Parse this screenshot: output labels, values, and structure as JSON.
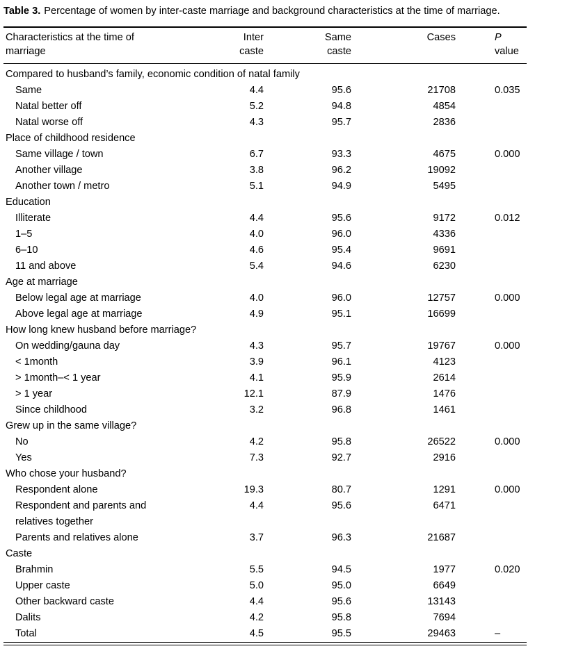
{
  "table": {
    "title_label": "Table 3.",
    "title_text": "Percentage of women by inter-caste marriage and background characteristics at the time of marriage.",
    "columns": {
      "characteristic": "Characteristics at the time of\nmarriage",
      "inter": "Inter\ncaste",
      "same": "Same\ncaste",
      "cases": "Cases",
      "p_italic": "P",
      "p_rest": "value"
    },
    "sections": [
      {
        "header": "Compared to husband’s family, economic condition of natal family",
        "rows": [
          {
            "label": "Same",
            "inter": "4.4",
            "same": "95.6",
            "cases": "21708",
            "p": "0.035"
          },
          {
            "label": "Natal better off",
            "inter": "5.2",
            "same": "94.8",
            "cases": "4854",
            "p": ""
          },
          {
            "label": "Natal worse off",
            "inter": "4.3",
            "same": "95.7",
            "cases": "2836",
            "p": ""
          }
        ]
      },
      {
        "header": "Place of childhood residence",
        "rows": [
          {
            "label": "Same village / town",
            "inter": "6.7",
            "same": "93.3",
            "cases": "4675",
            "p": "0.000"
          },
          {
            "label": "Another village",
            "inter": "3.8",
            "same": "96.2",
            "cases": "19092",
            "p": ""
          },
          {
            "label": "Another town / metro",
            "inter": "5.1",
            "same": "94.9",
            "cases": "5495",
            "p": ""
          }
        ]
      },
      {
        "header": "Education",
        "rows": [
          {
            "label": "Illiterate",
            "inter": "4.4",
            "same": "95.6",
            "cases": "9172",
            "p": "0.012"
          },
          {
            "label": "1–5",
            "inter": "4.0",
            "same": "96.0",
            "cases": "4336",
            "p": ""
          },
          {
            "label": "6–10",
            "inter": "4.6",
            "same": "95.4",
            "cases": "9691",
            "p": ""
          },
          {
            "label": "11 and above",
            "inter": "5.4",
            "same": "94.6",
            "cases": "6230",
            "p": ""
          }
        ]
      },
      {
        "header": "Age at marriage",
        "rows": [
          {
            "label": "Below legal age at marriage",
            "inter": "4.0",
            "same": "96.0",
            "cases": "12757",
            "p": "0.000"
          },
          {
            "label": "Above legal age at marriage",
            "inter": "4.9",
            "same": "95.1",
            "cases": "16699",
            "p": ""
          }
        ]
      },
      {
        "header": "How long knew husband before marriage?",
        "rows": [
          {
            "label": "On wedding/gauna day",
            "inter": "4.3",
            "same": "95.7",
            "cases": "19767",
            "p": "0.000"
          },
          {
            "label": "< 1month",
            "inter": "3.9",
            "same": "96.1",
            "cases": "4123",
            "p": ""
          },
          {
            "label": "> 1month–< 1 year",
            "inter": "4.1",
            "same": "95.9",
            "cases": "2614",
            "p": ""
          },
          {
            "label": "> 1 year",
            "inter": "12.1",
            "same": "87.9",
            "cases": "1476",
            "p": ""
          },
          {
            "label": "Since childhood",
            "inter": "3.2",
            "same": "96.8",
            "cases": "1461",
            "p": ""
          }
        ]
      },
      {
        "header": "Grew up in the same village?",
        "rows": [
          {
            "label": "No",
            "inter": "4.2",
            "same": "95.8",
            "cases": "26522",
            "p": "0.000"
          },
          {
            "label": "Yes",
            "inter": "7.3",
            "same": "92.7",
            "cases": "2916",
            "p": ""
          }
        ]
      },
      {
        "header": "Who chose your husband?",
        "rows": [
          {
            "label": "Respondent alone",
            "inter": "19.3",
            "same": "80.7",
            "cases": "1291",
            "p": "0.000"
          },
          {
            "label": "Respondent and parents and\nrelatives together",
            "inter": "4.4",
            "same": "95.6",
            "cases": "6471",
            "p": ""
          },
          {
            "label": "Parents and relatives alone",
            "inter": "3.7",
            "same": "96.3",
            "cases": "21687",
            "p": ""
          }
        ]
      },
      {
        "header": "Caste",
        "rows": [
          {
            "label": "Brahmin",
            "inter": "5.5",
            "same": "94.5",
            "cases": "1977",
            "p": "0.020"
          },
          {
            "label": "Upper caste",
            "inter": "5.0",
            "same": "95.0",
            "cases": "6649",
            "p": ""
          },
          {
            "label": "Other backward caste",
            "inter": "4.4",
            "same": "95.6",
            "cases": "13143",
            "p": ""
          },
          {
            "label": "Dalits",
            "inter": "4.2",
            "same": "95.8",
            "cases": "7694",
            "p": ""
          },
          {
            "label": "Total",
            "inter": "4.5",
            "same": "95.5",
            "cases": "29463",
            "p": "–"
          }
        ]
      }
    ]
  }
}
